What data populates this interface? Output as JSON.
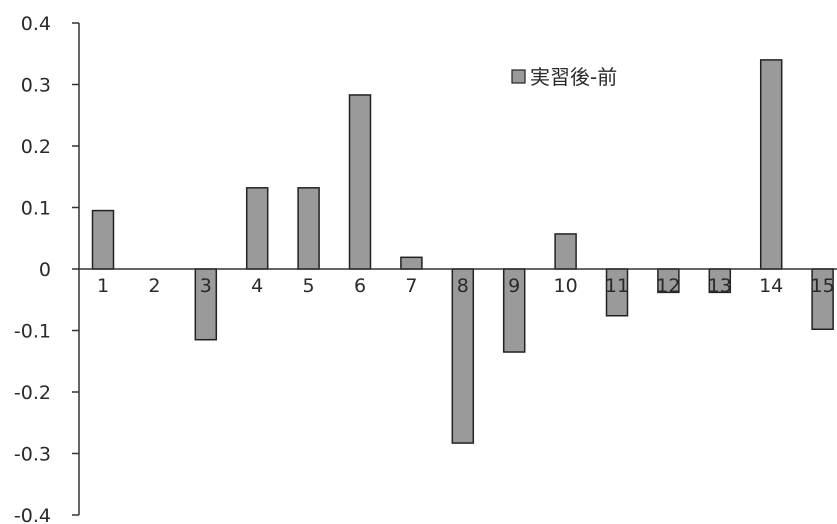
{
  "chart_data": {
    "type": "bar",
    "categories": [
      "1",
      "2",
      "3",
      "4",
      "5",
      "6",
      "7",
      "8",
      "9",
      "10",
      "11",
      "12",
      "13",
      "14",
      "15"
    ],
    "series": [
      {
        "name": "実習後-前",
        "values": [
          0.095,
          0,
          -0.115,
          0.132,
          0.132,
          0.283,
          0.019,
          -0.283,
          -0.135,
          0.057,
          -0.076,
          -0.038,
          -0.038,
          0.34,
          -0.098
        ]
      }
    ],
    "y_ticks": [
      "0.4",
      "0.3",
      "0.2",
      "0.1",
      "0",
      "-0.1",
      "-0.2",
      "-0.3",
      "-0.4"
    ],
    "ylim": [
      -0.4,
      0.4
    ],
    "grid": false,
    "legend_position": "top-right",
    "bar_color": "#9a9a9a",
    "bar_stroke": "#222222"
  }
}
